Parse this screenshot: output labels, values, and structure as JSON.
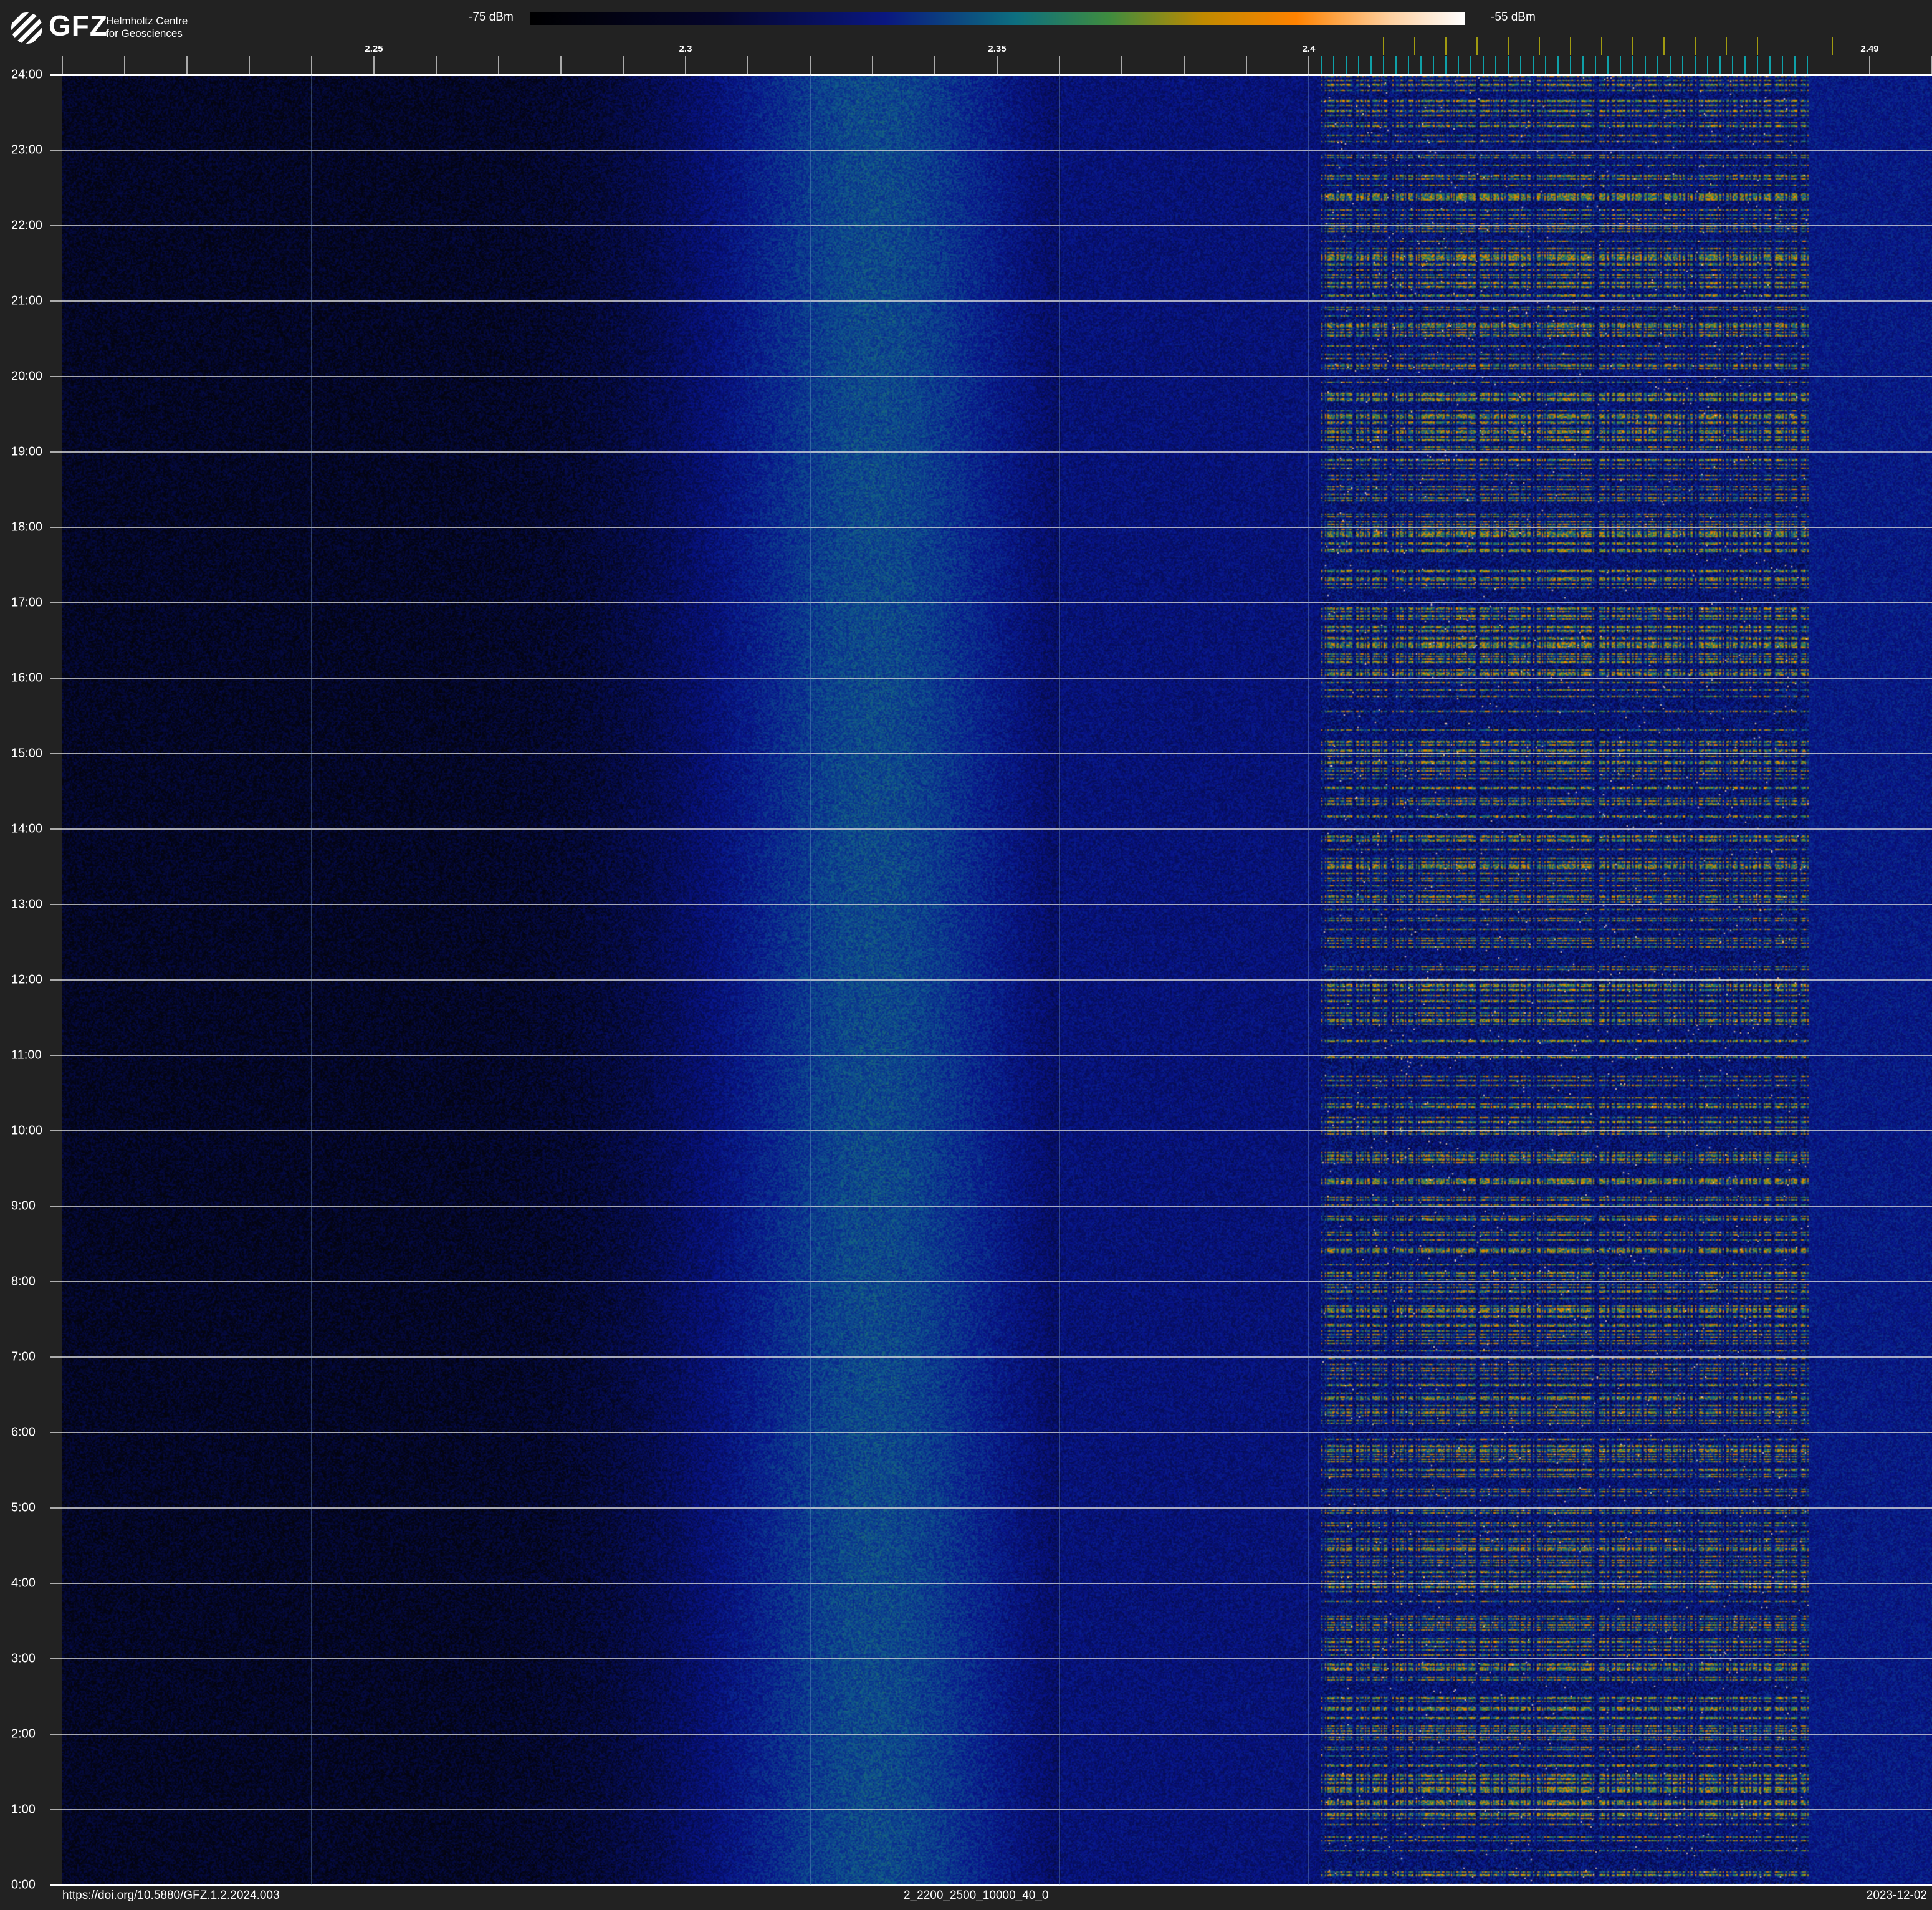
{
  "logo": {
    "mark": "GFZ",
    "line1": "Helmholtz Centre",
    "line2": "for Geosciences"
  },
  "colorbar": {
    "min_label": "-75 dBm",
    "max_label": "-55 dBm",
    "colors": [
      "#000000",
      "#0a1780",
      "#0d6f80",
      "#c08a00",
      "#ff8200",
      "#ffffff"
    ]
  },
  "chart_data": {
    "type": "heatmap",
    "x_ticks": [
      {
        "value": 2.25,
        "label": "2.25"
      },
      {
        "value": 2.3,
        "label": "2.3"
      },
      {
        "value": 2.35,
        "label": "2.35"
      },
      {
        "value": 2.4,
        "label": "2.4"
      },
      {
        "value": 2.49,
        "label": "2.49"
      }
    ],
    "xlim": [
      2.2,
      2.5
    ],
    "y_ticks": [
      "0:00",
      "1:00",
      "2:00",
      "3:00",
      "4:00",
      "5:00",
      "6:00",
      "7:00",
      "8:00",
      "9:00",
      "10:00",
      "11:00",
      "12:00",
      "13:00",
      "14:00",
      "15:00",
      "16:00",
      "17:00",
      "18:00",
      "19:00",
      "20:00",
      "21:00",
      "22:00",
      "23:00",
      "24:00"
    ],
    "ylim": [
      0,
      24
    ],
    "value_range_dbm": [
      -75,
      -55
    ],
    "grid": "horizontal hourly lines",
    "broadband_hump_center": 2.33,
    "wifi_band": [
      2.402,
      2.48
    ],
    "wifi_channel_markers": [
      2.412,
      2.417,
      2.422,
      2.427,
      2.432,
      2.437,
      2.442,
      2.447,
      2.452,
      2.457,
      2.462,
      2.467,
      2.472,
      2.484
    ]
  },
  "footer": {
    "doi": "https://doi.org/10.5880/GFZ.1.2.2024.003",
    "id": "2_2200_2500_10000_40_0",
    "date": "2023-12-02"
  }
}
